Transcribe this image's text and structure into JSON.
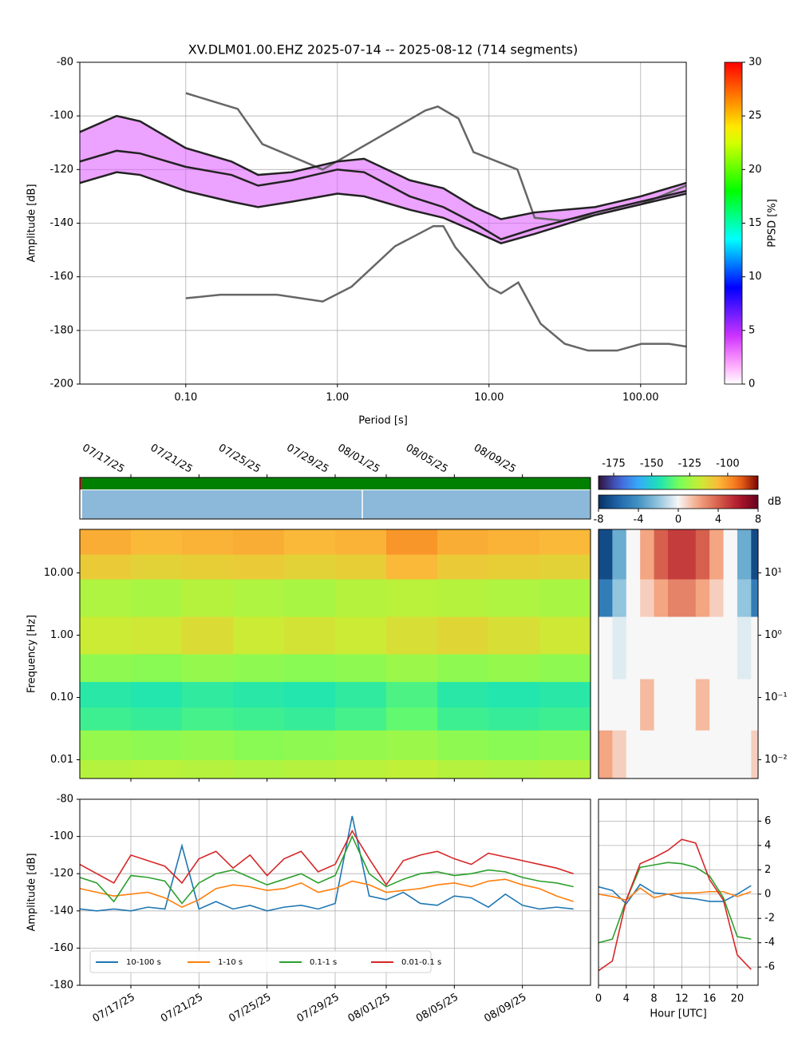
{
  "chart_data": [
    {
      "type": "line",
      "title": "XV.DLM01.00.EHZ   2025-07-14 -- 2025-08-12  (714 segments)",
      "xlabel": "Period [s]",
      "ylabel": "Amplitude [dB]",
      "xlog": true,
      "xlim": [
        0.02,
        200
      ],
      "xticks": [
        {
          "value": 0.1,
          "label": "0.10"
        },
        {
          "value": 1,
          "label": "1.00"
        },
        {
          "value": 10,
          "label": "10.00"
        },
        {
          "value": 100,
          "label": "100.00"
        }
      ],
      "ylim": [
        -200,
        -80
      ],
      "yticks": [
        -200,
        -180,
        -160,
        -140,
        -120,
        -100,
        -80
      ],
      "grid": true,
      "series": [
        {
          "color": "#666666",
          "x": [
            0.1,
            0.22,
            0.32,
            0.8,
            3.8,
            4.6,
            6.3,
            7.9,
            15.4,
            20,
            30,
            50,
            100,
            200
          ],
          "values": [
            -91.5,
            -97.4,
            -110.5,
            -120,
            -98,
            -96.5,
            -101,
            -113.5,
            -120,
            -138,
            -139,
            -137,
            -133,
            -126
          ]
        },
        {
          "color": "#666666",
          "x": [
            0.1,
            0.17,
            0.4,
            0.8,
            1.24,
            2.4,
            4.3,
            5,
            6,
            10,
            12,
            15.6,
            21.9,
            31.6,
            45,
            70,
            101,
            154,
            200
          ],
          "values": [
            -168,
            -166.7,
            -166.7,
            -169.2,
            -163.7,
            -148.6,
            -141.1,
            -141.1,
            -149,
            -163.8,
            -166.2,
            -162.1,
            -177.5,
            -185,
            -187.5,
            -187.5,
            -185,
            -185,
            -186
          ]
        },
        {
          "color": "#222222",
          "x": [
            0.02,
            0.035,
            0.05,
            0.1,
            0.2,
            0.3,
            0.5,
            1,
            1.5,
            3,
            5,
            8,
            12,
            20,
            50,
            100,
            200
          ],
          "values": [
            -106,
            -100,
            -102,
            -112,
            -117,
            -122,
            -121,
            -117,
            -116,
            -124,
            -127,
            -134,
            -138.5,
            -136,
            -134,
            -130,
            -125
          ]
        },
        {
          "color": "#222222",
          "x": [
            0.02,
            0.035,
            0.05,
            0.1,
            0.2,
            0.3,
            0.5,
            1,
            1.5,
            3,
            5,
            8,
            12,
            20,
            50,
            100,
            200
          ],
          "values": [
            -117,
            -113,
            -114,
            -119,
            -122,
            -126,
            -124,
            -120,
            -121,
            -130,
            -134,
            -140,
            -146,
            -142,
            -136,
            -132,
            -128
          ]
        },
        {
          "color": "#222222",
          "x": [
            0.02,
            0.035,
            0.05,
            0.1,
            0.2,
            0.3,
            0.5,
            1,
            1.5,
            3,
            5,
            8,
            12,
            20,
            50,
            100,
            200
          ],
          "values": [
            -125,
            -121,
            -122,
            -128,
            -132,
            -134,
            -132,
            -129,
            -130,
            -135,
            -138,
            -143,
            -147.5,
            -144,
            -137,
            -133,
            -129
          ]
        }
      ],
      "colorbar": {
        "label": "PPSD [%]",
        "colormap": "pqlx",
        "lim": [
          0,
          30
        ],
        "ticks": [
          0,
          5,
          10,
          15,
          20,
          25,
          30
        ]
      }
    },
    {
      "type": "heatmap",
      "ylabel": "Frequency [Hz]",
      "ylog": true,
      "xlim": [
        "2025-07-14",
        "2025-08-13"
      ],
      "xticks": [
        {
          "value": "2025-07-17",
          "label": "07/17/25"
        },
        {
          "value": "2025-07-21",
          "label": "07/21/25"
        },
        {
          "value": "2025-07-25",
          "label": "07/25/25"
        },
        {
          "value": "2025-07-29",
          "label": "07/29/25"
        },
        {
          "value": "2025-08-01",
          "label": "08/01/25"
        },
        {
          "value": "2025-08-05",
          "label": "08/05/25"
        },
        {
          "value": "2025-08-09",
          "label": "08/09/25"
        }
      ],
      "ylim": [
        0.005,
        50
      ],
      "yticks": [
        {
          "value": 0.01,
          "label": "0.01"
        },
        {
          "value": 0.1,
          "label": "0.10"
        },
        {
          "value": 1,
          "label": "1.00"
        },
        {
          "value": 10,
          "label": "10.00"
        }
      ],
      "grid": true,
      "xbins": [
        "2025-07-14",
        "2025-07-17",
        "2025-07-20",
        "2025-07-23",
        "2025-07-26",
        "2025-07-29",
        "2025-08-01",
        "2025-08-04",
        "2025-08-07",
        "2025-08-10",
        "2025-08-13"
      ],
      "ybins": [
        0.005,
        0.01,
        0.03,
        0.07,
        0.18,
        0.5,
        2,
        8,
        20,
        50
      ],
      "z": [
        [
          -122,
          -121,
          -122,
          -123,
          -122,
          -121,
          -120,
          -122,
          -123,
          -122
        ],
        [
          -127,
          -128,
          -127,
          -129,
          -128,
          -127,
          -126,
          -128,
          -129,
          -128
        ],
        [
          -140,
          -141,
          -139,
          -140,
          -141,
          -139,
          -135,
          -140,
          -141,
          -140
        ],
        [
          -143,
          -144,
          -142,
          -143,
          -144,
          -142,
          -138,
          -143,
          -144,
          -143
        ],
        [
          -128,
          -129,
          -127,
          -128,
          -129,
          -128,
          -126,
          -128,
          -127,
          -128
        ],
        [
          -118,
          -117,
          -114,
          -118,
          -116,
          -118,
          -115,
          -113,
          -115,
          -117
        ],
        [
          -123,
          -124,
          -122,
          -123,
          -124,
          -122,
          -121,
          -122,
          -123,
          -124
        ],
        [
          -110,
          -112,
          -111,
          -110,
          -112,
          -111,
          -106,
          -110,
          -111,
          -112
        ],
        [
          -104,
          -106,
          -105,
          -104,
          -106,
          -105,
          -100,
          -104,
          -105,
          -106
        ]
      ],
      "colorbar": {
        "colormap": "turbo",
        "lim": [
          -185,
          -80
        ],
        "ticks": [
          -175,
          -150,
          -125,
          -100
        ]
      }
    },
    {
      "type": "heatmap",
      "ylog": true,
      "xlim": [
        0,
        23
      ],
      "ylim": [
        0.005,
        50
      ],
      "yticks": [
        {
          "value": 0.01,
          "label": "10⁻²"
        },
        {
          "value": 0.1,
          "label": "10⁻¹"
        },
        {
          "value": 1,
          "label": "10⁰"
        },
        {
          "value": 10,
          "label": "10¹"
        }
      ],
      "grid": true,
      "xbins": [
        0,
        2,
        4,
        6,
        8,
        10,
        12,
        14,
        16,
        18,
        20,
        22,
        24
      ],
      "ybins": [
        0.005,
        0.03,
        0.2,
        2,
        8,
        50
      ],
      "z": [
        [
          2,
          1,
          0,
          0,
          0,
          0,
          0,
          0,
          0,
          0,
          0,
          1
        ],
        [
          0,
          0,
          0,
          1.5,
          0,
          0,
          0,
          1.5,
          0,
          0,
          0,
          0
        ],
        [
          0,
          -0.5,
          0,
          0,
          0,
          0,
          0,
          0,
          0,
          0,
          -0.5,
          0
        ],
        [
          -5,
          -2,
          0,
          1,
          2,
          3,
          3,
          2,
          1,
          0,
          -2,
          -5
        ],
        [
          -7,
          -3,
          0,
          2,
          4,
          5,
          5,
          4,
          2,
          0,
          -3,
          -7
        ]
      ],
      "colorbar": {
        "label": "dB",
        "colormap": "RdBu_r",
        "lim": [
          -8,
          8
        ],
        "ticks": [
          -8,
          -4,
          0,
          4,
          8
        ]
      }
    },
    {
      "type": "line",
      "ylabel": "Amplitude [dB]",
      "x": [
        "2025-07-14",
        "2025-07-15",
        "2025-07-16",
        "2025-07-17",
        "2025-07-18",
        "2025-07-19",
        "2025-07-20",
        "2025-07-21",
        "2025-07-22",
        "2025-07-23",
        "2025-07-24",
        "2025-07-25",
        "2025-07-26",
        "2025-07-27",
        "2025-07-28",
        "2025-07-29",
        "2025-07-30",
        "2025-07-31",
        "2025-08-01",
        "2025-08-02",
        "2025-08-03",
        "2025-08-04",
        "2025-08-05",
        "2025-08-06",
        "2025-08-07",
        "2025-08-08",
        "2025-08-09",
        "2025-08-10",
        "2025-08-11",
        "2025-08-12"
      ],
      "xlim": [
        "2025-07-14",
        "2025-08-13"
      ],
      "xticks": [
        {
          "value": "2025-07-17",
          "label": "07/17/25"
        },
        {
          "value": "2025-07-21",
          "label": "07/21/25"
        },
        {
          "value": "2025-07-25",
          "label": "07/25/25"
        },
        {
          "value": "2025-07-29",
          "label": "07/29/25"
        },
        {
          "value": "2025-08-01",
          "label": "08/01/25"
        },
        {
          "value": "2025-08-05",
          "label": "08/05/25"
        },
        {
          "value": "2025-08-09",
          "label": "08/09/25"
        }
      ],
      "ylim": [
        -180,
        -80
      ],
      "yticks": [
        -180,
        -160,
        -140,
        -120,
        -100,
        -80
      ],
      "grid": true,
      "legend": "lower left",
      "series": [
        {
          "name": "10-100 s",
          "color": "#1f77b4",
          "values": [
            -139,
            -140,
            -139,
            -140,
            -138,
            -139,
            -105,
            -139,
            -135,
            -139,
            -137,
            -140,
            -138,
            -137,
            -139,
            -136,
            -89,
            -132,
            -134,
            -130,
            -136,
            -137,
            -132,
            -133,
            -138,
            -131,
            -137,
            -139,
            -138,
            -139
          ]
        },
        {
          "name": "1-10 s",
          "color": "#ff7f0e",
          "values": [
            -128,
            -130,
            -132,
            -131,
            -130,
            -133,
            -138,
            -134,
            -128,
            -126,
            -127,
            -129,
            -128,
            -125,
            -130,
            -128,
            -124,
            -126,
            -130,
            -129,
            -128,
            -126,
            -125,
            -127,
            -124,
            -123,
            -126,
            -128,
            -132,
            -135
          ]
        },
        {
          "name": "0.1-1 s",
          "color": "#2ca02c",
          "values": [
            -122,
            -125,
            -135,
            -121,
            -122,
            -124,
            -136,
            -125,
            -120,
            -118,
            -122,
            -126,
            -123,
            -120,
            -125,
            -121,
            -100,
            -120,
            -127,
            -123,
            -120,
            -119,
            -121,
            -120,
            -118,
            -119,
            -122,
            -124,
            -125,
            -127
          ]
        },
        {
          "name": "0.01-0.1 s",
          "color": "#d62728",
          "values": [
            -115,
            -120,
            -125,
            -110,
            -113,
            -116,
            -125,
            -112,
            -108,
            -117,
            -110,
            -121,
            -112,
            -108,
            -119,
            -115,
            -97,
            -112,
            -126,
            -113,
            -110,
            -108,
            -112,
            -115,
            -109,
            -111,
            -113,
            -115,
            -117,
            -120
          ]
        }
      ]
    },
    {
      "type": "line",
      "xlabel": "Hour [UTC]",
      "x": [
        0,
        2,
        4,
        6,
        8,
        10,
        12,
        14,
        16,
        18,
        20,
        22
      ],
      "xlim": [
        0,
        23
      ],
      "xticks": [
        0,
        4,
        8,
        12,
        16,
        20
      ],
      "ylim": [
        -7.5,
        7.8
      ],
      "yticks": [
        -6,
        -4,
        -2,
        0,
        2,
        4,
        6
      ],
      "grid": true,
      "series": [
        {
          "color": "#1f77b4",
          "values": [
            0.6,
            0.3,
            -0.8,
            0.8,
            0.1,
            0,
            -0.3,
            -0.4,
            -0.6,
            -0.6,
            0,
            0.7
          ]
        },
        {
          "color": "#ff7f0e",
          "values": [
            0,
            -0.2,
            -0.5,
            0.5,
            -0.3,
            0,
            0.1,
            0.1,
            0.2,
            0.2,
            -0.2,
            0.2
          ]
        },
        {
          "color": "#2ca02c",
          "values": [
            -4,
            -3.7,
            -0.5,
            2.2,
            2.4,
            2.6,
            2.5,
            2.2,
            1.5,
            -0.3,
            -3.5,
            -3.7
          ]
        },
        {
          "color": "#d62728",
          "values": [
            -6.3,
            -5.5,
            -0.5,
            2.5,
            3,
            3.6,
            4.5,
            4.2,
            1.2,
            -0.5,
            -5,
            -6.2
          ]
        }
      ]
    }
  ]
}
